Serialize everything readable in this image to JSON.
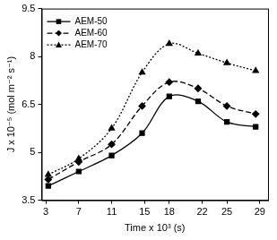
{
  "chart_data": {
    "type": "line",
    "x_label": "Time x 10³ (s)",
    "y_label": "J x 10⁻⁵ (mol m⁻² s⁻¹)",
    "x": [
      3.3,
      7,
      11,
      14.7,
      18,
      21.5,
      25,
      28.5
    ],
    "series": [
      {
        "name": "AEM-50",
        "color": "#000000",
        "marker": "square",
        "line_style": "solid",
        "values": [
          3.95,
          4.4,
          4.9,
          5.6,
          6.75,
          6.6,
          5.95,
          5.8
        ]
      },
      {
        "name": "AEM-60",
        "color": "#000000",
        "marker": "diamond",
        "line_style": "dashed",
        "values": [
          4.15,
          4.7,
          5.25,
          6.45,
          7.2,
          7.0,
          6.45,
          6.2
        ]
      },
      {
        "name": "AEM-70",
        "color": "#000000",
        "marker": "triangle",
        "line_style": "dotted",
        "values": [
          4.3,
          4.8,
          5.75,
          7.5,
          8.4,
          8.1,
          7.8,
          7.55
        ]
      }
    ],
    "xlim": [
      2.5,
      30
    ],
    "xticks": [
      3,
      7,
      11,
      15,
      18,
      22,
      25,
      29
    ],
    "ylim": [
      3.5,
      9.5
    ],
    "yticks": [
      3.5,
      5,
      6.5,
      8,
      9.5
    ],
    "grid": false,
    "legend": "top-left"
  }
}
